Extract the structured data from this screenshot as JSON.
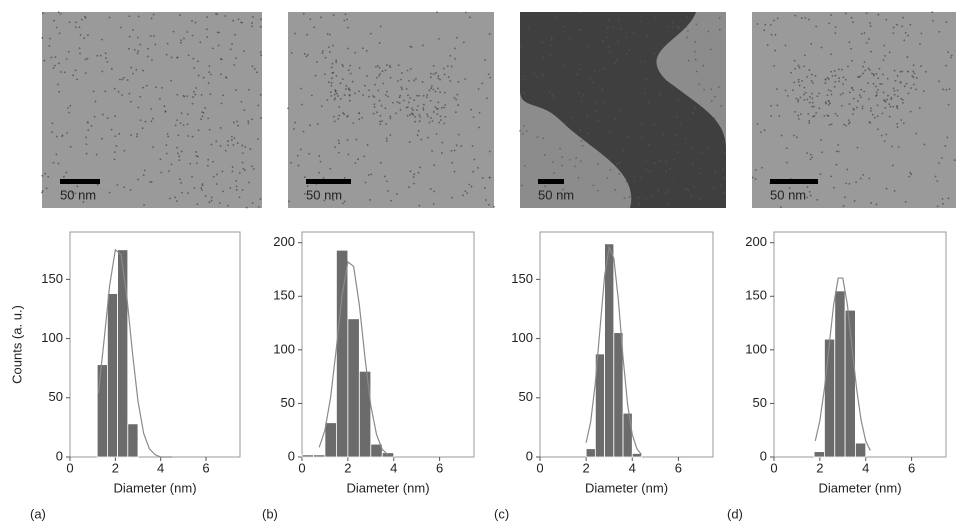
{
  "chart_data": [
    {
      "type": "histogram",
      "ylabel": "Counts (a. u.)",
      "xlabel": "Diameter (nm)",
      "bins": [
        1.2,
        1.65,
        2.1,
        2.55,
        3.0
      ],
      "values": [
        78,
        138,
        175,
        28
      ],
      "color": "#6b6b6b",
      "fit": {
        "x": [
          1.25,
          1.5,
          1.75,
          2.0,
          2.25,
          2.5,
          2.75,
          3.0,
          3.25,
          3.5,
          3.75,
          4.0,
          4.5
        ],
        "values": [
          54,
          98,
          145,
          175,
          171,
          137,
          89,
          47,
          20,
          7,
          2,
          0,
          0
        ],
        "color": "#8a8a8a"
      },
      "xlim": [
        0,
        7.5
      ],
      "xticks": [
        0,
        2,
        4,
        6
      ],
      "ylim": [
        0,
        190
      ],
      "yticks": [
        0,
        50,
        100,
        150
      ]
    },
    {
      "type": "histogram",
      "xlabel": "Diameter (nm)",
      "bins": [
        0,
        0.5,
        1.0,
        1.5,
        2.0,
        2.5,
        3.0,
        3.5,
        4.0
      ],
      "values": [
        2,
        2,
        32,
        193,
        129,
        80,
        12,
        4
      ],
      "color": "#6b6b6b",
      "fit": {
        "x": [
          0.75,
          1.0,
          1.25,
          1.5,
          1.75,
          2.0,
          2.25,
          2.5,
          2.75,
          3.0,
          3.25,
          3.5,
          3.75
        ],
        "values": [
          9,
          25,
          56,
          102,
          151,
          182,
          178,
          142,
          92,
          48,
          21,
          7,
          2
        ],
        "color": "#8a8a8a"
      },
      "xlim": [
        0,
        7.5
      ],
      "xticks": [
        0,
        2,
        4,
        6
      ],
      "ylim": [
        0,
        210
      ],
      "yticks": [
        0,
        50,
        100,
        150,
        200
      ]
    },
    {
      "type": "histogram",
      "xlabel": "Diameter (nm)",
      "bins": [
        2.0,
        2.4,
        2.8,
        3.2,
        3.6,
        4.0,
        4.4
      ],
      "values": [
        7,
        87,
        180,
        105,
        37,
        3
      ],
      "color": "#6b6b6b",
      "fit": {
        "x": [
          2.0,
          2.2,
          2.4,
          2.6,
          2.8,
          3.0,
          3.2,
          3.4,
          3.6,
          3.8,
          4.0,
          4.2,
          4.4
        ],
        "values": [
          12,
          30,
          63,
          108,
          153,
          177,
          168,
          132,
          84,
          44,
          19,
          7,
          2
        ],
        "color": "#8a8a8a"
      },
      "xlim": [
        0,
        7.5
      ],
      "xticks": [
        0,
        2,
        4,
        6
      ],
      "ylim": [
        0,
        190
      ],
      "yticks": [
        0,
        50,
        100,
        150
      ]
    },
    {
      "type": "histogram",
      "xlabel": "Diameter (nm)",
      "bins": [
        1.75,
        2.2,
        2.65,
        3.1,
        3.55,
        4.0
      ],
      "values": [
        5,
        110,
        155,
        137,
        13
      ],
      "color": "#6b6b6b",
      "fit": {
        "x": [
          1.8,
          2.0,
          2.2,
          2.4,
          2.6,
          2.8,
          3.0,
          3.2,
          3.4,
          3.6,
          3.8,
          4.0,
          4.2
        ],
        "values": [
          15,
          34,
          64,
          103,
          142,
          167,
          167,
          142,
          103,
          64,
          34,
          15,
          6
        ],
        "color": "#8a8a8a"
      },
      "xlim": [
        0,
        7.5
      ],
      "xticks": [
        0,
        2,
        4,
        6
      ],
      "ylim": [
        0,
        210
      ],
      "yticks": [
        0,
        50,
        100,
        150,
        200
      ]
    }
  ],
  "images": [
    {
      "scale_label": "50 nm"
    },
    {
      "scale_label": "50 nm"
    },
    {
      "scale_label": "50 nm"
    },
    {
      "scale_label": "50 nm"
    }
  ],
  "panel_labels": [
    "(a)",
    "(b)",
    "(c)",
    "(d)"
  ]
}
